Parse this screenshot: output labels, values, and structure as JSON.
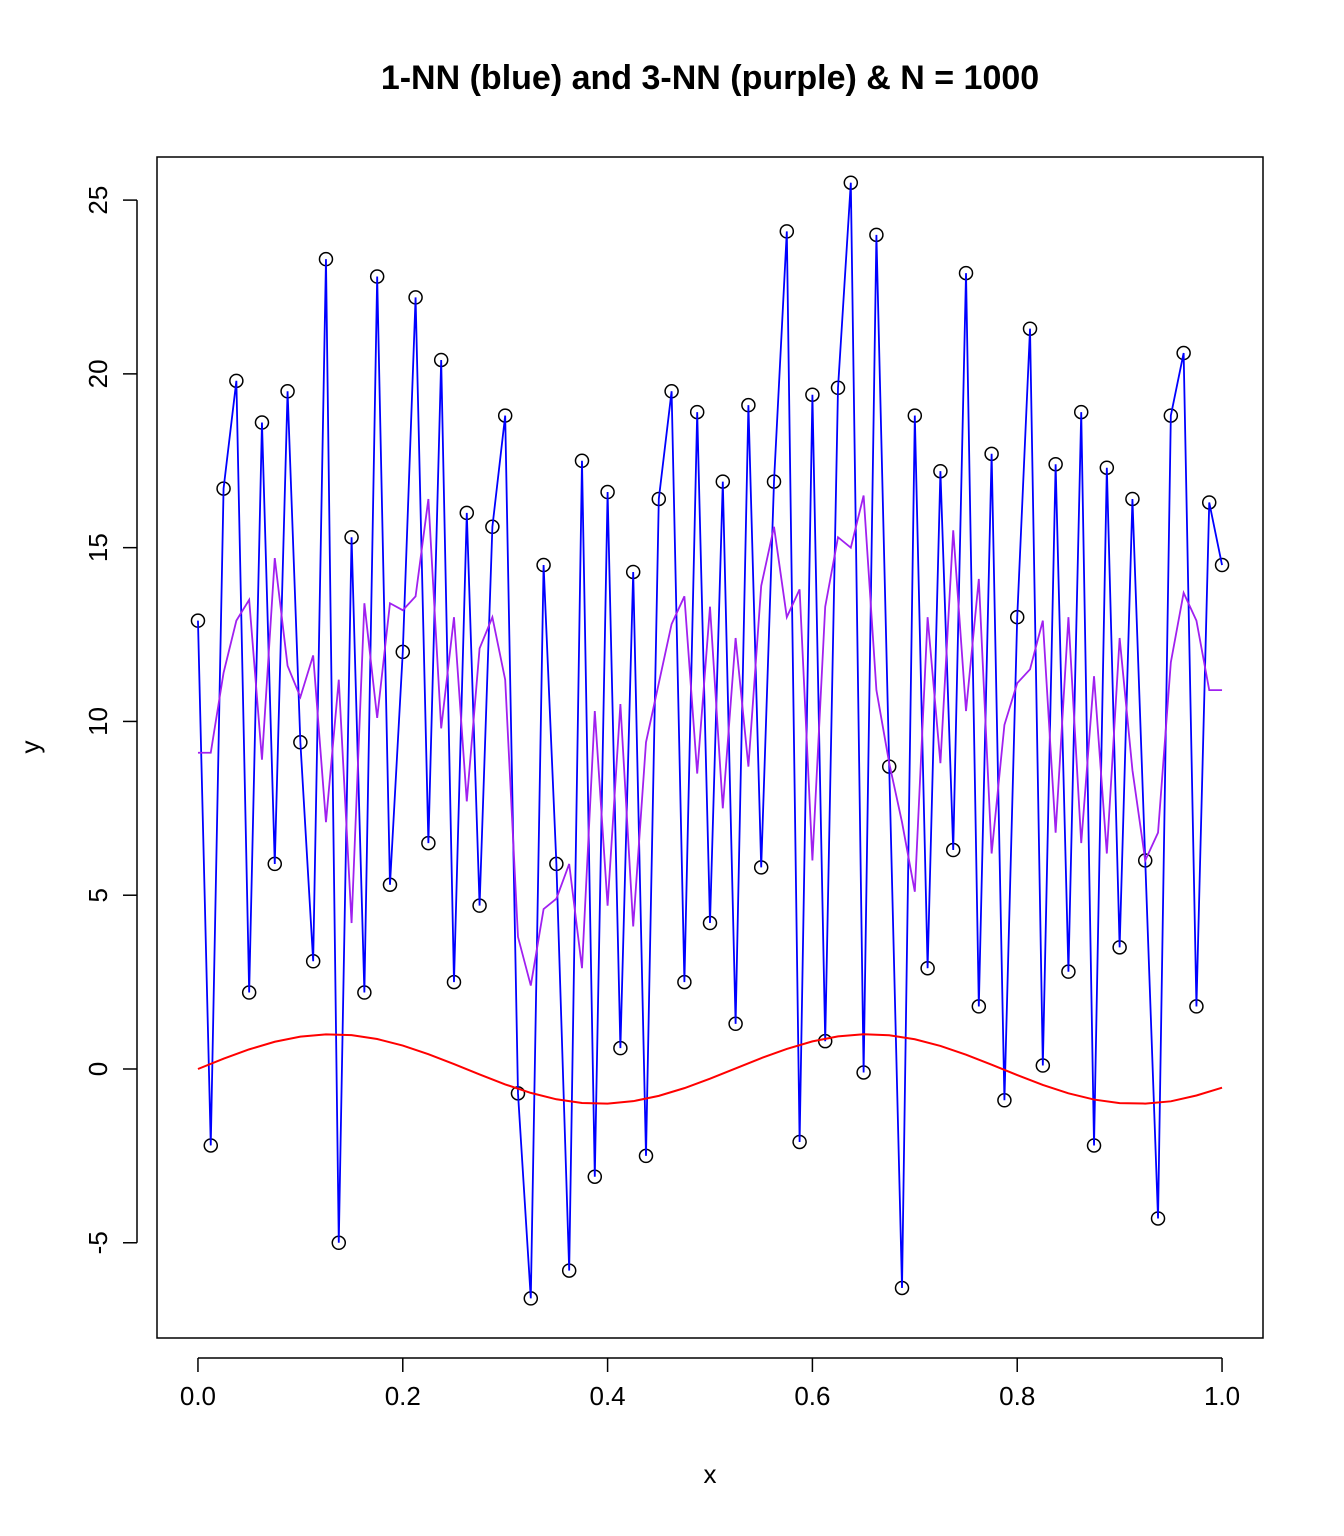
{
  "chart_data": {
    "type": "scatter",
    "title": "1-NN (blue) and 3-NN (purple) & N = 1000",
    "x_label": "x",
    "y_label": "y",
    "xlim": [
      -0.04,
      1.04
    ],
    "ylim": [
      -7.74,
      26.24
    ],
    "xticks": [
      {
        "value": 0,
        "label": "0.0"
      },
      0.2,
      0.4,
      0.6,
      0.8,
      {
        "value": 1,
        "label": "1.0"
      }
    ],
    "yticks": [
      -5,
      0,
      5,
      10,
      15,
      20,
      25
    ],
    "x": [
      0,
      0.0125,
      0.025,
      0.0375,
      0.05,
      0.0625,
      0.075,
      0.0875,
      0.1,
      0.1125,
      0.125,
      0.1375,
      0.15,
      0.1625,
      0.175,
      0.1875,
      0.2,
      0.2125,
      0.225,
      0.2375,
      0.25,
      0.2625,
      0.275,
      0.2875,
      0.3,
      0.3125,
      0.325,
      0.3375,
      0.35,
      0.3625,
      0.375,
      0.3875,
      0.4,
      0.4125,
      0.425,
      0.4375,
      0.45,
      0.4625,
      0.475,
      0.4875,
      0.5,
      0.5125,
      0.525,
      0.5375,
      0.55,
      0.5625,
      0.575,
      0.5875,
      0.6,
      0.6125,
      0.625,
      0.6375,
      0.65,
      0.6625,
      0.675,
      0.6875,
      0.7,
      0.7125,
      0.725,
      0.7375,
      0.75,
      0.7625,
      0.775,
      0.7875,
      0.8,
      0.8125,
      0.825,
      0.8375,
      0.85,
      0.8625,
      0.875,
      0.8875,
      0.9,
      0.9125,
      0.925,
      0.9375,
      0.95,
      0.9625,
      0.975,
      0.9875,
      1.0
    ],
    "series": [
      {
        "color": "#000000",
        "marker": "circle",
        "line_color": "#0000ff",
        "values": [
          12.9,
          -2.2,
          16.7,
          19.8,
          2.2,
          18.6,
          5.9,
          19.5,
          9.4,
          3.1,
          23.3,
          -5.0,
          15.3,
          2.2,
          22.8,
          5.3,
          12.0,
          22.2,
          6.5,
          20.4,
          2.5,
          16.0,
          4.7,
          15.6,
          18.8,
          -0.7,
          -6.6,
          14.5,
          5.9,
          -5.8,
          17.5,
          -3.1,
          16.6,
          0.6,
          14.3,
          -2.5,
          16.4,
          19.5,
          2.5,
          18.9,
          4.2,
          16.9,
          1.3,
          19.1,
          5.8,
          16.9,
          24.1,
          -2.1,
          19.4,
          0.8,
          19.6,
          25.5,
          -0.1,
          24.0,
          8.7,
          -6.3,
          18.8,
          2.9,
          17.2,
          6.3,
          22.9,
          1.8,
          17.7,
          -0.9,
          13.0,
          21.3,
          0.1,
          17.4,
          2.8,
          18.9,
          -2.2,
          17.3,
          3.5,
          16.4,
          6.0,
          -4.3,
          18.8,
          20.6,
          1.8,
          16.3,
          14.5
        ]
      },
      {
        "color": "#a020f0",
        "marker": "none",
        "values": [
          9.1,
          9.1,
          11.4,
          12.9,
          13.5,
          8.9,
          14.7,
          11.6,
          10.7,
          11.9,
          7.1,
          11.2,
          4.2,
          13.4,
          10.1,
          13.4,
          13.2,
          13.6,
          16.4,
          9.8,
          13.0,
          7.7,
          12.1,
          13.0,
          11.2,
          3.8,
          2.4,
          4.6,
          4.9,
          5.9,
          2.9,
          10.3,
          4.7,
          10.5,
          4.1,
          9.4,
          11.1,
          12.8,
          13.6,
          8.5,
          13.3,
          7.5,
          12.4,
          8.7,
          13.9,
          15.6,
          13.0,
          13.8,
          6.0,
          13.3,
          15.3,
          15.0,
          16.5,
          10.9,
          8.8,
          7.1,
          5.1,
          13.0,
          8.8,
          15.5,
          10.3,
          14.1,
          6.2,
          9.9,
          11.1,
          11.5,
          12.9,
          6.8,
          13.0,
          6.5,
          11.3,
          6.2,
          12.4,
          8.6,
          6.0,
          6.8,
          11.7,
          13.7,
          12.9,
          10.9,
          10.9
        ]
      }
    ],
    "curve": {
      "color": "#ff0000",
      "x": [
        0,
        0.025,
        0.05,
        0.075,
        0.1,
        0.125,
        0.15,
        0.175,
        0.2,
        0.225,
        0.25,
        0.275,
        0.3,
        0.325,
        0.35,
        0.375,
        0.4,
        0.425,
        0.45,
        0.475,
        0.5,
        0.525,
        0.55,
        0.575,
        0.6,
        0.625,
        0.65,
        0.675,
        0.7,
        0.725,
        0.75,
        0.775,
        0.8,
        0.825,
        0.85,
        0.875,
        0.9,
        0.925,
        0.95,
        0.975,
        1.0
      ],
      "values": [
        0,
        0.296,
        0.565,
        0.783,
        0.932,
        0.997,
        0.974,
        0.863,
        0.675,
        0.427,
        0.141,
        -0.158,
        -0.443,
        -0.688,
        -0.872,
        -0.978,
        -0.996,
        -0.926,
        -0.773,
        -0.551,
        -0.279,
        0.017,
        0.312,
        0.578,
        0.794,
        0.938,
        0.999,
        0.97,
        0.855,
        0.663,
        0.412,
        0.124,
        -0.175,
        -0.458,
        -0.7,
        -0.88,
        -0.981,
        -0.995,
        -0.93,
        -0.762,
        -0.537
      ]
    }
  }
}
